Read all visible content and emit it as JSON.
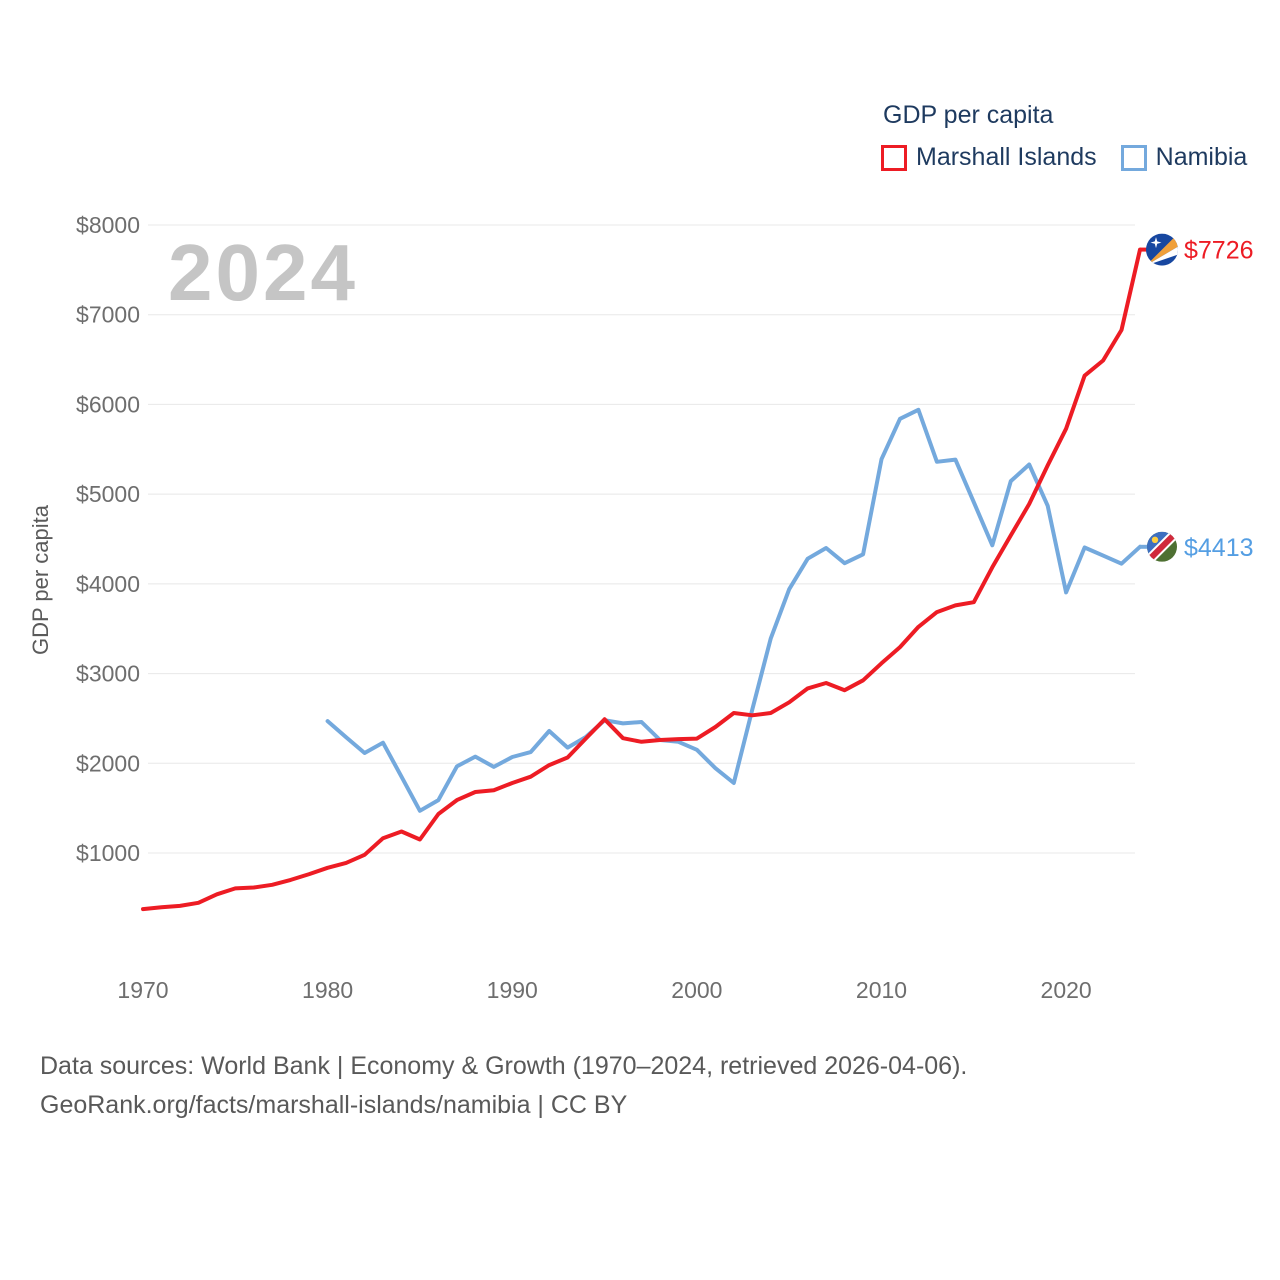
{
  "legend": {
    "title": "GDP per capita",
    "items": [
      {
        "label": "Marshall Islands",
        "color": "#ed1c24"
      },
      {
        "label": "Namibia",
        "color": "#74a9dd"
      }
    ]
  },
  "footer": {
    "line1": "Data sources: World Bank | Economy & Growth (1970–2024, retrieved 2026-04-06).",
    "line2": "GeoRank.org/facts/marshall-islands/namibia | CC BY"
  },
  "chart_data": {
    "type": "line",
    "title": "GDP per capita",
    "ylabel": "GDP per capita",
    "watermark": "2024",
    "x_min": 1970,
    "x_max": 2024,
    "ylim": [
      1000,
      8000
    ],
    "grid": "horizontal",
    "legend_position": "top-right",
    "x_ticks": [
      {
        "value": 1970,
        "label": "1970"
      },
      {
        "value": 1980,
        "label": "1980"
      },
      {
        "value": 1990,
        "label": "1990"
      },
      {
        "value": 2000,
        "label": "2000"
      },
      {
        "value": 2010,
        "label": "2010"
      },
      {
        "value": 2020,
        "label": "2020"
      }
    ],
    "y_ticks": [
      {
        "value": 1000,
        "label": "$1000"
      },
      {
        "value": 2000,
        "label": "$2000"
      },
      {
        "value": 3000,
        "label": "$3000"
      },
      {
        "value": 4000,
        "label": "$4000"
      },
      {
        "value": 5000,
        "label": "$5000"
      },
      {
        "value": 6000,
        "label": "$6000"
      },
      {
        "value": 7000,
        "label": "$7000"
      },
      {
        "value": 8000,
        "label": "$8000"
      }
    ],
    "series": [
      {
        "id": "marshall-islands",
        "name": "Marshall Islands",
        "color": "#ed1c24",
        "label_color": "#ed1c24",
        "start_year": 1970,
        "values": [
          375,
          395,
          410,
          445,
          540,
          605,
          615,
          645,
          700,
          765,
          835,
          890,
          980,
          1165,
          1240,
          1150,
          1435,
          1590,
          1680,
          1700,
          1780,
          1850,
          1980,
          2065,
          2280,
          2490,
          2280,
          2240,
          2260,
          2270,
          2275,
          2405,
          2560,
          2535,
          2560,
          2680,
          2835,
          2895,
          2815,
          2925,
          3115,
          3295,
          3520,
          3685,
          3760,
          3795,
          4185,
          4540,
          4890,
          5320,
          5730,
          6320,
          6490,
          6830,
          7726
        ]
      },
      {
        "id": "namibia",
        "name": "Namibia",
        "color": "#74a9dd",
        "label_color": "#549ee3",
        "start_year": 1980,
        "values": [
          2470,
          2290,
          2115,
          2230,
          1850,
          1470,
          1590,
          1965,
          2075,
          1960,
          2070,
          2125,
          2360,
          2175,
          2295,
          2480,
          2445,
          2460,
          2260,
          2240,
          2150,
          1945,
          1780,
          2600,
          3390,
          3940,
          4280,
          4400,
          4230,
          4330,
          5390,
          5840,
          5940,
          5360,
          5385,
          4910,
          4430,
          5145,
          5330,
          4870,
          3905,
          4405,
          4315,
          4225,
          4413
        ]
      }
    ],
    "end_labels": [
      {
        "series": "Marshall Islands",
        "text": "$7726"
      },
      {
        "series": "Namibia",
        "text": "$4413"
      }
    ]
  }
}
